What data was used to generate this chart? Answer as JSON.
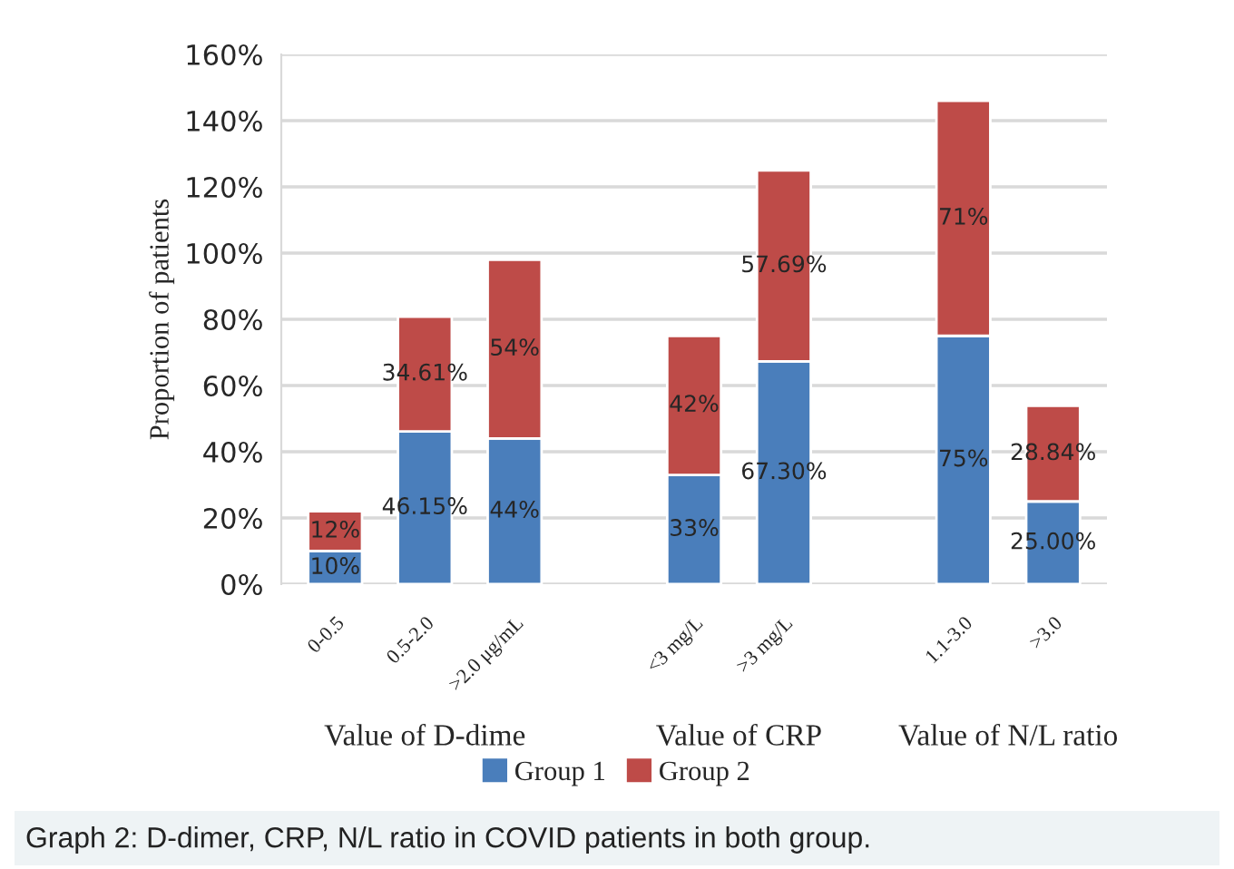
{
  "chart_data": {
    "type": "bar",
    "stacked": true,
    "categories": [
      "0-0.5",
      "0.5-2.0",
      ">2.0 μg/mL",
      null,
      "<3 mg/L",
      ">3 mg/L",
      null,
      "1.1-3.0",
      ">3.0"
    ],
    "series": [
      {
        "name": "Group 1",
        "color": "#4a7ebb",
        "values": [
          10,
          46.15,
          44,
          null,
          33,
          67.3,
          null,
          75,
          25.0
        ],
        "value_labels": [
          "10%",
          "46.15%",
          "44%",
          null,
          "33%",
          "67.30%",
          null,
          "75%",
          "25.00%"
        ]
      },
      {
        "name": "Group 2",
        "color": "#be4b48",
        "values": [
          12,
          34.61,
          54,
          null,
          42,
          57.69,
          null,
          71,
          28.84
        ],
        "value_labels": [
          "12%",
          "34.61%",
          "54%",
          null,
          "42%",
          "57.69%",
          null,
          "71%",
          "28.84%"
        ]
      }
    ],
    "ylabel": "Proportion of patients",
    "ylim": [
      0,
      160
    ],
    "yticks": [
      {
        "value": 0,
        "label": "0%"
      },
      {
        "value": 20,
        "label": "20%"
      },
      {
        "value": 40,
        "label": "40%"
      },
      {
        "value": 60,
        "label": "60%"
      },
      {
        "value": 80,
        "label": "80%"
      },
      {
        "value": 100,
        "label": "100%"
      },
      {
        "value": 120,
        "label": "120%"
      },
      {
        "value": 140,
        "label": "140%"
      },
      {
        "value": 160,
        "label": "160%"
      }
    ],
    "grid": "y",
    "legend": "bottom",
    "annotations": [
      "Value of D-dime",
      "Value of CRP",
      "Value of N/L ratio",
      "Graph 2: D-dimer, CRP, N/L ratio in COVID patients in both group."
    ]
  }
}
